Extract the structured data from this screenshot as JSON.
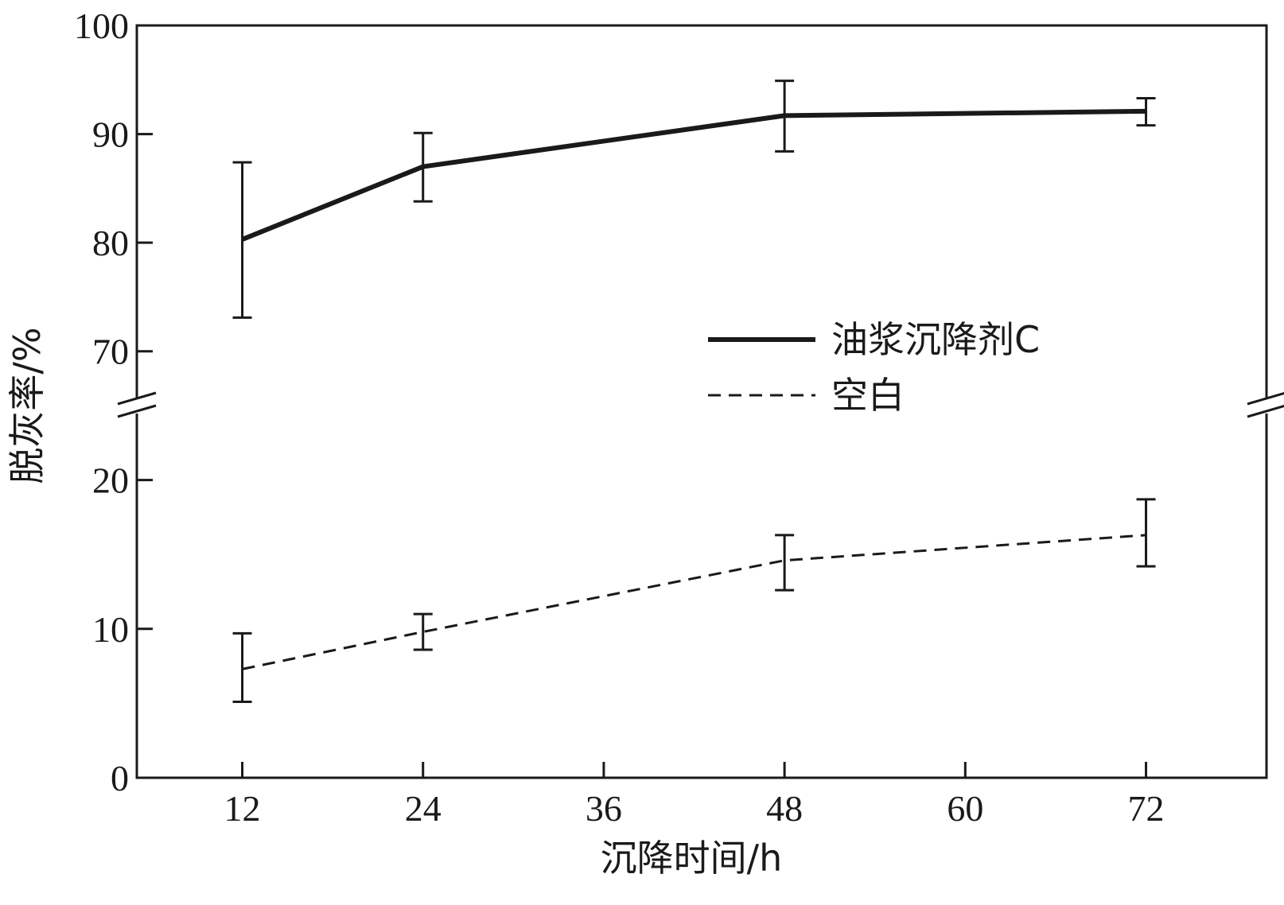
{
  "chart_data": {
    "type": "line",
    "xlabel": "沉降时间/h",
    "ylabel": "脱灰率/%",
    "x_ticks": [
      12,
      24,
      36,
      48,
      60,
      72
    ],
    "xlim": [
      5,
      80
    ],
    "y_axis_break": true,
    "y_lower_segment": {
      "range": [
        0,
        25
      ],
      "ticks": [
        0,
        10,
        20
      ]
    },
    "y_upper_segment": {
      "range": [
        65,
        100
      ],
      "ticks": [
        70,
        80,
        90,
        100
      ]
    },
    "legend_position": "center-right",
    "series": [
      {
        "name": "油浆沉降剂C",
        "style": "solid",
        "color": "#1a1a1a",
        "x": [
          12,
          24,
          48,
          72
        ],
        "y": [
          80.3,
          87.0,
          91.7,
          92.1
        ],
        "err_low": [
          73.1,
          83.8,
          88.4,
          90.8
        ],
        "err_high": [
          87.4,
          90.1,
          94.9,
          93.3
        ]
      },
      {
        "name": "空白",
        "style": "dashed",
        "color": "#1a1a1a",
        "x": [
          12,
          24,
          48,
          72
        ],
        "y": [
          7.3,
          9.8,
          14.6,
          16.3
        ],
        "err_low": [
          5.1,
          8.6,
          12.6,
          14.2
        ],
        "err_high": [
          9.7,
          11.0,
          16.3,
          18.7
        ]
      }
    ]
  }
}
